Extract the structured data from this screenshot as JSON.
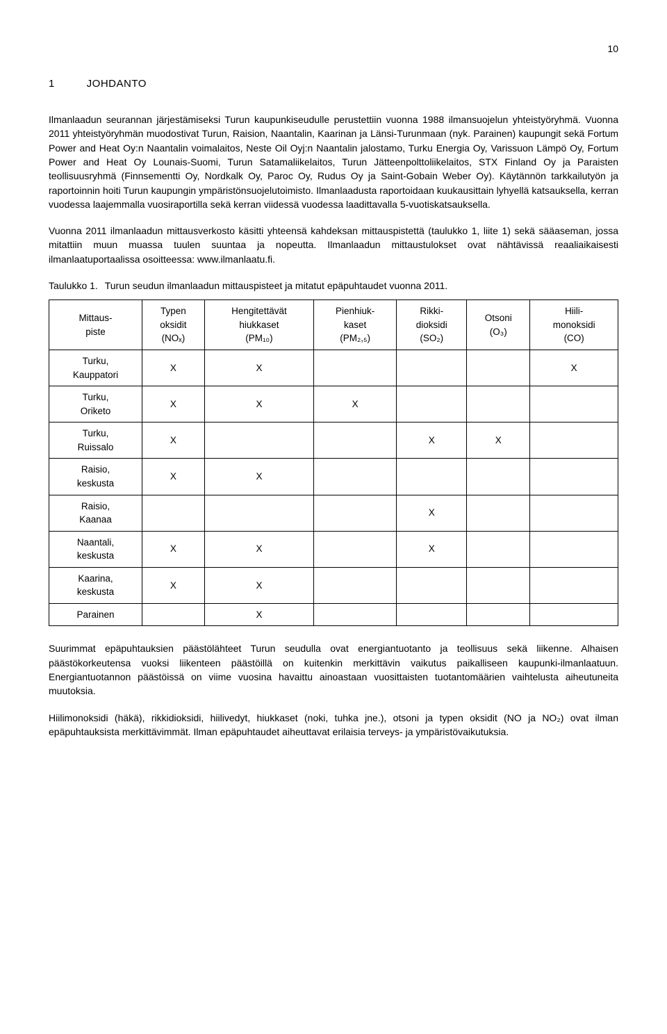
{
  "page_number": "10",
  "heading": {
    "number": "1",
    "title": "JOHDANTO"
  },
  "para1": "Ilmanlaadun seurannan järjestämiseksi Turun kaupunkiseudulle perustettiin vuonna 1988 ilmansuojelun yhteistyöryhmä. Vuonna 2011 yhteistyöryhmän muodostivat Turun, Raision, Naantalin, Kaarinan ja Länsi-Turunmaan (nyk. Parainen) kaupungit sekä Fortum Power and Heat Oy:n Naantalin voimalaitos, Neste Oil Oyj:n Naantalin jalostamo, Turku Energia Oy, Varissuon Lämpö Oy, Fortum Power and Heat Oy Lounais-Suomi, Turun Satamaliikelaitos, Turun Jätteenpolttoliikelaitos, STX Finland Oy ja Paraisten teollisuusryhmä (Finnsementti Oy, Nordkalk Oy, Paroc Oy, Rudus Oy ja Saint-Gobain Weber Oy). Käytännön tarkkailutyön ja raportoinnin hoiti Turun kaupungin ympäristönsuojelutoimisto. Ilmanlaadusta raportoidaan kuukausittain lyhyellä katsauksella, kerran vuodessa laajemmalla vuosiraportilla sekä kerran viidessä vuodessa laadittavalla 5-vuotiskatsauksella.",
  "para2": "Vuonna 2011 ilmanlaadun mittausverkosto käsitti yhteensä kahdeksan mittauspistettä (taulukko 1, liite 1) sekä sääaseman, jossa mitattiin muun muassa tuulen suuntaa ja nopeutta. Ilmanlaadun mittaustulokset ovat nähtävissä reaaliaikaisesti ilmanlaatuportaalissa osoitteessa: www.ilmanlaatu.fi.",
  "table_caption": {
    "label": "Taulukko 1.",
    "text": "Turun seudun ilmanlaadun mittauspisteet ja mitatut epäpuhtaudet vuonna 2011."
  },
  "table": {
    "headers": [
      "Mittaus-\npiste",
      "Typen\noksidit\n(NOₓ)",
      "Hengitettävät\nhiukkaset\n(PM₁₀)",
      "Pienhiuk-\nkaset\n(PM₂,₅)",
      "Rikki-\ndioksidi\n(SO₂)",
      "Otsoni\n(O₃)",
      "Hiili-\nmonoksidi\n(CO)"
    ],
    "rows": [
      [
        "Turku,\nKauppatori",
        "X",
        "X",
        "",
        "",
        "",
        "X"
      ],
      [
        "Turku,\nOriketo",
        "X",
        "X",
        "X",
        "",
        "",
        ""
      ],
      [
        "Turku,\nRuissalo",
        "X",
        "",
        "",
        "X",
        "X",
        ""
      ],
      [
        "Raisio,\nkeskusta",
        "X",
        "X",
        "",
        "",
        "",
        ""
      ],
      [
        "Raisio,\nKaanaa",
        "",
        "",
        "",
        "X",
        "",
        ""
      ],
      [
        "Naantali,\nkeskusta",
        "X",
        "X",
        "",
        "X",
        "",
        ""
      ],
      [
        "Kaarina,\nkeskusta",
        "X",
        "X",
        "",
        "",
        "",
        ""
      ],
      [
        "Parainen",
        "",
        "X",
        "",
        "",
        "",
        ""
      ]
    ]
  },
  "para3": "Suurimmat epäpuhtauksien päästölähteet Turun seudulla ovat energiantuotanto ja teollisuus sekä liikenne. Alhaisen päästökorkeutensa vuoksi liikenteen päästöillä on kuitenkin merkittävin vaikutus paikalliseen kaupunki-ilmanlaatuun. Energiantuotannon päästöissä on viime vuosina havaittu ainoastaan vuosittaisten tuotantomäärien vaihtelusta aiheutuneita muutoksia.",
  "para4": "Hiilimonoksidi (häkä), rikkidioksidi, hiilivedyt, hiukkaset (noki, tuhka jne.), otsoni ja typen oksidit (NO ja NO₂) ovat ilman epäpuhtauksista merkittävimmät. Ilman epäpuhtaudet aiheuttavat erilaisia terveys- ja ympäristövaikutuksia."
}
